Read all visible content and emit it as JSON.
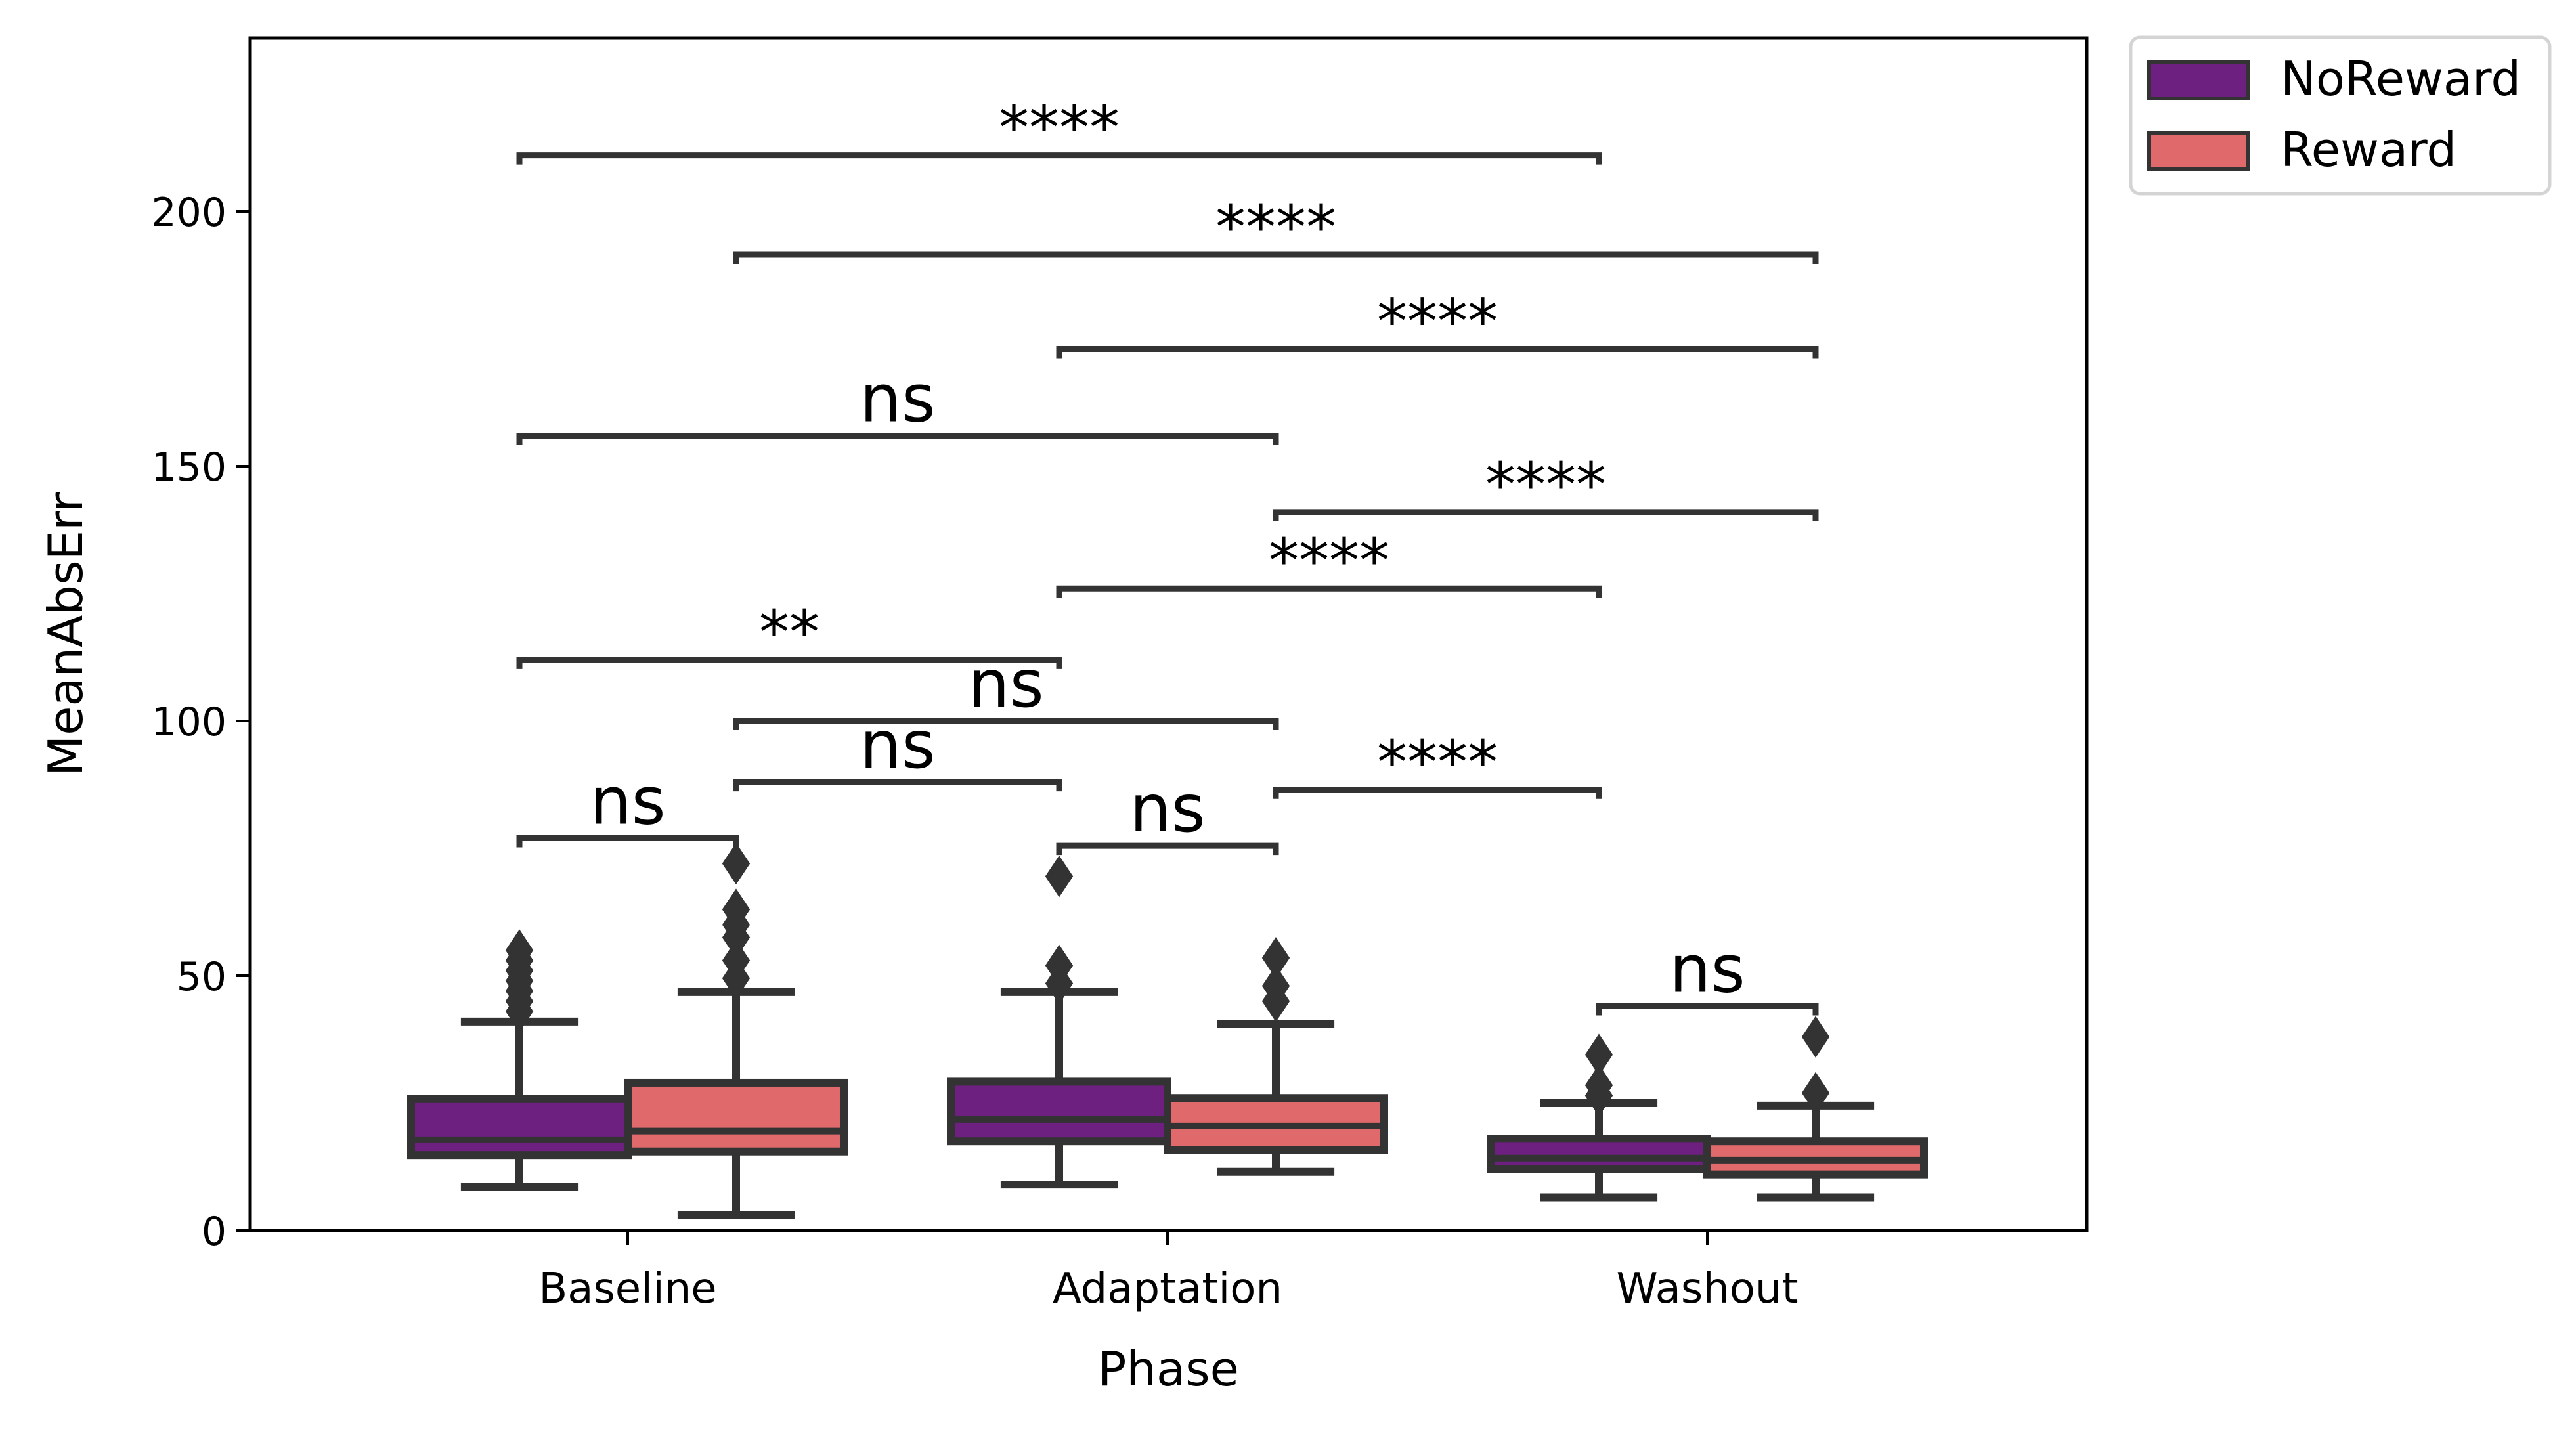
{
  "chart_data": {
    "type": "box",
    "title": "",
    "xlabel": "Phase",
    "ylabel": "MeanAbsErr",
    "categories": [
      "Baseline",
      "Adaptation",
      "Washout"
    ],
    "ylim": [
      0,
      235
    ],
    "yticks": [
      {
        "value": 0,
        "label": "0"
      },
      {
        "value": 50,
        "label": "50"
      },
      {
        "value": 100,
        "label": "100"
      },
      {
        "value": 150,
        "label": "150"
      },
      {
        "value": 200,
        "label": "200"
      }
    ],
    "grid": false,
    "legend_position": "outside-top-right",
    "series": [
      {
        "name": "NoReward",
        "color": "#6d2080",
        "boxes": [
          {
            "category": "Baseline",
            "whisker_low": 8.5,
            "q1": 14.8,
            "median": 17.8,
            "q3": 25.8,
            "whisker_high": 41.0,
            "outliers": [
              43,
              45,
              47,
              49,
              51,
              53,
              55
            ]
          },
          {
            "category": "Adaptation",
            "whisker_low": 9.0,
            "q1": 17.5,
            "median": 21.8,
            "q3": 29.2,
            "whisker_high": 46.8,
            "outliers": [
              48.5,
              52,
              69.5
            ]
          },
          {
            "category": "Washout",
            "whisker_low": 6.5,
            "q1": 12.0,
            "median": 14.2,
            "q3": 18.0,
            "whisker_high": 25.0,
            "outliers": [
              26.5,
              28.5,
              34.5
            ]
          }
        ]
      },
      {
        "name": "Reward",
        "color": "#e0696b",
        "boxes": [
          {
            "category": "Baseline",
            "whisker_low": 3.0,
            "q1": 15.5,
            "median": 19.5,
            "q3": 29.0,
            "whisker_high": 46.8,
            "outliers": [
              49.5,
              53,
              57.5,
              60,
              63,
              72
            ]
          },
          {
            "category": "Adaptation",
            "whisker_low": 11.5,
            "q1": 15.8,
            "median": 20.5,
            "q3": 26.0,
            "whisker_high": 40.5,
            "outliers": [
              45,
              48,
              53.5
            ]
          },
          {
            "category": "Washout",
            "whisker_low": 6.5,
            "q1": 11.0,
            "median": 13.8,
            "q3": 17.5,
            "whisker_high": 24.5,
            "outliers": [
              27,
              38
            ]
          }
        ]
      }
    ],
    "annotations": [
      {
        "from": [
          "Baseline",
          "NoReward"
        ],
        "to": [
          "Washout",
          "NoReward"
        ],
        "y": 211,
        "label": "****"
      },
      {
        "from": [
          "Baseline",
          "Reward"
        ],
        "to": [
          "Washout",
          "Reward"
        ],
        "y": 191.5,
        "label": "****"
      },
      {
        "from": [
          "Adaptation",
          "NoReward"
        ],
        "to": [
          "Washout",
          "Reward"
        ],
        "y": 173,
        "label": "****"
      },
      {
        "from": [
          "Baseline",
          "NoReward"
        ],
        "to": [
          "Adaptation",
          "Reward"
        ],
        "y": 156,
        "label": "ns"
      },
      {
        "from": [
          "Adaptation",
          "Reward"
        ],
        "to": [
          "Washout",
          "Reward"
        ],
        "y": 141,
        "label": "****"
      },
      {
        "from": [
          "Adaptation",
          "NoReward"
        ],
        "to": [
          "Washout",
          "NoReward"
        ],
        "y": 126,
        "label": "****"
      },
      {
        "from": [
          "Baseline",
          "NoReward"
        ],
        "to": [
          "Adaptation",
          "NoReward"
        ],
        "y": 112,
        "label": "**"
      },
      {
        "from": [
          "Baseline",
          "Reward"
        ],
        "to": [
          "Adaptation",
          "Reward"
        ],
        "y": 100,
        "label": "ns"
      },
      {
        "from": [
          "Baseline",
          "Reward"
        ],
        "to": [
          "Adaptation",
          "NoReward"
        ],
        "y": 88,
        "label": "ns"
      },
      {
        "from": [
          "Adaptation",
          "Reward"
        ],
        "to": [
          "Washout",
          "NoReward"
        ],
        "y": 86.5,
        "label": "****"
      },
      {
        "from": [
          "Baseline",
          "NoReward"
        ],
        "to": [
          "Baseline",
          "Reward"
        ],
        "y": 77,
        "label": "ns"
      },
      {
        "from": [
          "Adaptation",
          "NoReward"
        ],
        "to": [
          "Adaptation",
          "Reward"
        ],
        "y": 75.5,
        "label": "ns"
      },
      {
        "from": [
          "Washout",
          "NoReward"
        ],
        "to": [
          "Washout",
          "Reward"
        ],
        "y": 44,
        "label": "ns"
      }
    ]
  }
}
